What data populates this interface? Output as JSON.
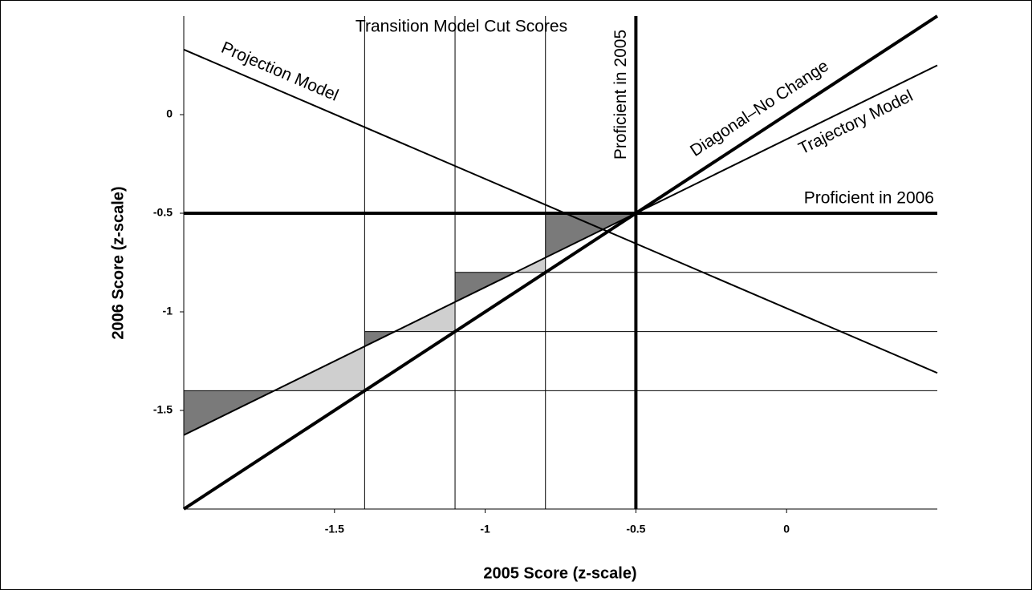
{
  "chart_data": {
    "type": "line",
    "title": "Transition Model Cut Scores",
    "xlabel": "2005 Score (z-scale)",
    "ylabel": "2006 Score (z-scale)",
    "xlim": [
      -2,
      0.5
    ],
    "ylim": [
      -2,
      0.5
    ],
    "xticks": [
      -1.5,
      -1,
      -0.5,
      0
    ],
    "yticks": [
      -1.5,
      -1,
      -0.5,
      0
    ],
    "series": [
      {
        "name": "Projection Model",
        "x": [
          -2,
          0.5
        ],
        "values": [
          0.33,
          -1.31
        ],
        "color": "#000000",
        "bold": false
      },
      {
        "name": "Diagonal–No Change",
        "x": [
          -2,
          0.5
        ],
        "values": [
          -2,
          0.5
        ],
        "color": "#000000",
        "bold": true
      },
      {
        "name": "Trajectory Model",
        "x": [
          -2,
          0.5
        ],
        "values": [
          -1.625,
          0.25
        ],
        "color": "#000000",
        "bold": false
      }
    ],
    "cut_scores": {
      "x": [
        -1.4,
        -1.1,
        -0.8
      ],
      "y": [
        -1.4,
        -1.1,
        -0.8
      ]
    },
    "proficiency": {
      "x": -0.5,
      "y": -0.5,
      "x_label": "Proficient in 2005",
      "y_label": "Proficient in 2006"
    },
    "shade_colors": {
      "below": "#7a7a7a",
      "above": "#cfcfcf"
    }
  }
}
